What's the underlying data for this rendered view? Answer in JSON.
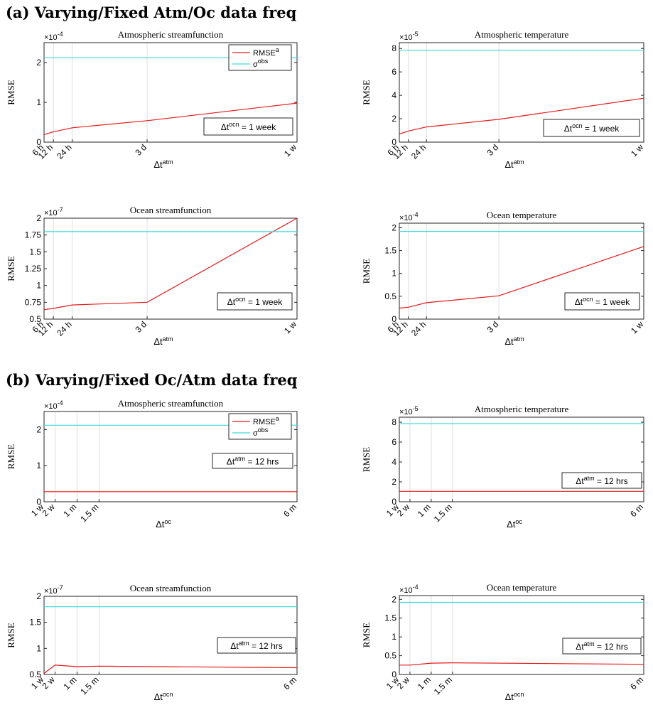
{
  "sections": [
    {
      "id": "a",
      "title": "(a) Varying/Fixed Atm/Oc data freq"
    },
    {
      "id": "b",
      "title": "(b) Varying/Fixed Oc/Atm data freq"
    }
  ],
  "chart_data": [
    {
      "type": "line",
      "section": "a",
      "title": "Atmospheric streamfunction",
      "ylabel": "RMSE",
      "xlabel": "Δt",
      "xlabel_sup": "atm",
      "exponent_prefix": "×10",
      "exponent": "-4",
      "x": [
        0.25,
        0.5,
        1,
        3,
        7
      ],
      "xticks": [
        "6 h",
        "12 h",
        "24 h",
        "3 d",
        "1 w"
      ],
      "xlim": [
        0.25,
        7
      ],
      "ylim": [
        0,
        2.5
      ],
      "yticks": [
        0,
        1,
        2
      ],
      "ytick_labels": [
        "0",
        "1",
        "2"
      ],
      "grid": "x",
      "series": [
        {
          "name": "RMSE",
          "name_sup": "a",
          "color": "#e8191a",
          "values": [
            0.19,
            0.26,
            0.36,
            0.54,
            0.98
          ]
        },
        {
          "name": "σ",
          "name_sup": "obs",
          "color": "#38dcd8",
          "values": [
            2.12,
            2.12,
            2.12,
            2.12,
            2.12
          ]
        }
      ],
      "legend": "top-right",
      "annotation": {
        "prefix": "Δt",
        "sup": "ocn",
        "suffix": " = 1 week"
      }
    },
    {
      "type": "line",
      "section": "a",
      "title": "Atmospheric temperature",
      "ylabel": "RMSE",
      "xlabel": "Δt",
      "xlabel_sup": "atm",
      "exponent_prefix": "×10",
      "exponent": "-5",
      "x": [
        0.25,
        0.5,
        1,
        3,
        7
      ],
      "xticks": [
        "6 h",
        "12 h",
        "24 h",
        "3 d",
        "1 w"
      ],
      "xlim": [
        0.25,
        7
      ],
      "ylim": [
        0,
        8.5
      ],
      "yticks": [
        0,
        2,
        4,
        6,
        8
      ],
      "ytick_labels": [
        "0",
        "2",
        "4",
        "6",
        "8"
      ],
      "grid": "x",
      "series": [
        {
          "name": "RMSE",
          "name_sup": "a",
          "color": "#e8191a",
          "values": [
            0.7,
            0.95,
            1.3,
            1.95,
            3.75
          ]
        },
        {
          "name": "σ",
          "name_sup": "obs",
          "color": "#38dcd8",
          "values": [
            7.85,
            7.85,
            7.85,
            7.85,
            7.85
          ]
        }
      ],
      "annotation": {
        "prefix": "Δt",
        "sup": "ocn",
        "suffix": " = 1 week"
      }
    },
    {
      "type": "line",
      "section": "a",
      "title": "Ocean streamfunction",
      "ylabel": "RMSE",
      "xlabel": "Δt",
      "xlabel_sup": "atm",
      "exponent_prefix": "×10",
      "exponent": "-7",
      "x": [
        0.25,
        0.5,
        1,
        3,
        7
      ],
      "xticks": [
        "6 h",
        "12 h",
        "24 h",
        "3 d",
        "1 w"
      ],
      "xlim": [
        0.25,
        7
      ],
      "ylim": [
        0.5,
        2
      ],
      "yticks": [
        0.5,
        0.75,
        1,
        1.25,
        1.5,
        1.75,
        2
      ],
      "ytick_labels": [
        "0.5",
        "0.75",
        "1",
        "1.25",
        "1.5",
        "1.75",
        "2"
      ],
      "grid": "x",
      "series": [
        {
          "name": "RMSE",
          "name_sup": "a",
          "color": "#e8191a",
          "values": [
            0.64,
            0.66,
            0.71,
            0.75,
            2.0
          ]
        },
        {
          "name": "σ",
          "name_sup": "obs",
          "color": "#38dcd8",
          "values": [
            1.8,
            1.8,
            1.8,
            1.8,
            1.8
          ]
        }
      ],
      "annotation": {
        "prefix": "Δt",
        "sup": "ocn",
        "suffix": " = 1 week"
      }
    },
    {
      "type": "line",
      "section": "a",
      "title": "Ocean temperature",
      "ylabel": "RMSE",
      "xlabel": "Δt",
      "xlabel_sup": "atm",
      "exponent_prefix": "×10",
      "exponent": "-4",
      "x": [
        0.25,
        0.5,
        1,
        3,
        7
      ],
      "xticks": [
        "6 h",
        "12 h",
        "24 h",
        "3 d",
        "1 w"
      ],
      "xlim": [
        0.25,
        7
      ],
      "ylim": [
        0,
        2.1
      ],
      "yticks": [
        0,
        0.5,
        1,
        1.5,
        2
      ],
      "ytick_labels": [
        "0",
        "0.5",
        "1",
        "1.5",
        "2"
      ],
      "grid": "x",
      "series": [
        {
          "name": "RMSE",
          "name_sup": "a",
          "color": "#e8191a",
          "values": [
            0.24,
            0.26,
            0.36,
            0.51,
            1.59
          ]
        },
        {
          "name": "σ",
          "name_sup": "obs",
          "color": "#38dcd8",
          "values": [
            1.92,
            1.92,
            1.92,
            1.92,
            1.92
          ]
        }
      ],
      "annotation": {
        "prefix": "Δt",
        "sup": "ocn",
        "suffix": " = 1 week"
      }
    },
    {
      "type": "line",
      "section": "b",
      "title": "Atmospheric streamfunction",
      "ylabel": "RMSE",
      "xlabel": "Δt",
      "xlabel_sup": "oc",
      "exponent_prefix": "×10",
      "exponent": "-4",
      "x": [
        1,
        2,
        4,
        6,
        24
      ],
      "xticks": [
        "1 w",
        "2 w",
        "1 m",
        "1.5 m",
        "6 m"
      ],
      "xlim": [
        1,
        24
      ],
      "ylim": [
        0,
        2.5
      ],
      "yticks": [
        0,
        1,
        2
      ],
      "ytick_labels": [
        "0",
        "1",
        "2"
      ],
      "grid": "x",
      "series": [
        {
          "name": "RMSE",
          "name_sup": "a",
          "color": "#e8191a",
          "values": [
            0.28,
            0.28,
            0.28,
            0.28,
            0.28
          ]
        },
        {
          "name": "σ",
          "name_sup": "obs",
          "color": "#38dcd8",
          "values": [
            2.12,
            2.12,
            2.12,
            2.12,
            2.12
          ]
        }
      ],
      "legend": "top-right",
      "annotation": {
        "prefix": "Δt",
        "sup": "atm",
        "suffix": " = 12 hrs"
      }
    },
    {
      "type": "line",
      "section": "b",
      "title": "Atmospheric temperature",
      "ylabel": "RMSE",
      "xlabel": "Δt",
      "xlabel_sup": "oc",
      "exponent_prefix": "×10",
      "exponent": "-5",
      "x": [
        1,
        2,
        4,
        6,
        24
      ],
      "xticks": [
        "1 w",
        "2 w",
        "1 m",
        "1.5 m",
        "6 m"
      ],
      "xlim": [
        1,
        24
      ],
      "ylim": [
        0,
        8.5
      ],
      "yticks": [
        0,
        2,
        4,
        6,
        8
      ],
      "ytick_labels": [
        "0",
        "2",
        "4",
        "6",
        "8"
      ],
      "grid": "x",
      "series": [
        {
          "name": "RMSE",
          "name_sup": "a",
          "color": "#e8191a",
          "values": [
            1.05,
            1.05,
            1.05,
            1.05,
            1.05
          ]
        },
        {
          "name": "σ",
          "name_sup": "obs",
          "color": "#38dcd8",
          "values": [
            7.85,
            7.85,
            7.85,
            7.85,
            7.85
          ]
        }
      ],
      "annotation": {
        "prefix": "Δt",
        "sup": "atm",
        "suffix": " = 12 hrs"
      }
    },
    {
      "type": "line",
      "section": "b",
      "title": "Ocean streamfunction",
      "ylabel": "RMSE",
      "xlabel": "Δt",
      "xlabel_sup": "ocn",
      "exponent_prefix": "×10",
      "exponent": "-7",
      "x": [
        1,
        2,
        4,
        6,
        24
      ],
      "xticks": [
        "1 w",
        "2 w",
        "1 m",
        "1.5 m",
        "6 m"
      ],
      "xlim": [
        1,
        24
      ],
      "ylim": [
        0.5,
        2
      ],
      "yticks": [
        0.5,
        1,
        1.5,
        2
      ],
      "ytick_labels": [
        "0.5",
        "1",
        "1.5",
        "2"
      ],
      "grid": "x",
      "series": [
        {
          "name": "RMSE",
          "name_sup": "a",
          "color": "#e8191a",
          "values": [
            0.52,
            0.68,
            0.65,
            0.66,
            0.63
          ]
        },
        {
          "name": "σ",
          "name_sup": "obs",
          "color": "#38dcd8",
          "values": [
            1.8,
            1.8,
            1.8,
            1.8,
            1.8
          ]
        }
      ],
      "annotation": {
        "prefix": "Δt",
        "sup": "atm",
        "suffix": " = 12 hrs"
      }
    },
    {
      "type": "line",
      "section": "b",
      "title": "Ocean temperature",
      "ylabel": "RMSE",
      "xlabel": "Δt",
      "xlabel_sup": "ocn",
      "exponent_prefix": "×10",
      "exponent": "-4",
      "x": [
        1,
        2,
        4,
        6,
        24
      ],
      "xticks": [
        "1 w",
        "2 w",
        "1 m",
        "1.5 m",
        "6 m"
      ],
      "xlim": [
        1,
        24
      ],
      "ylim": [
        0,
        2.1
      ],
      "yticks": [
        0,
        0.5,
        1,
        1.5,
        2
      ],
      "ytick_labels": [
        "0",
        "0.5",
        "1",
        "1.5",
        "2"
      ],
      "grid": "x",
      "series": [
        {
          "name": "RMSE",
          "name_sup": "a",
          "color": "#e8191a",
          "values": [
            0.25,
            0.25,
            0.3,
            0.31,
            0.27
          ]
        },
        {
          "name": "σ",
          "name_sup": "obs",
          "color": "#38dcd8",
          "values": [
            1.92,
            1.92,
            1.92,
            1.92,
            1.92
          ]
        }
      ],
      "annotation": {
        "prefix": "Δt",
        "sup": "atm",
        "suffix": " = 12 hrs"
      }
    }
  ]
}
